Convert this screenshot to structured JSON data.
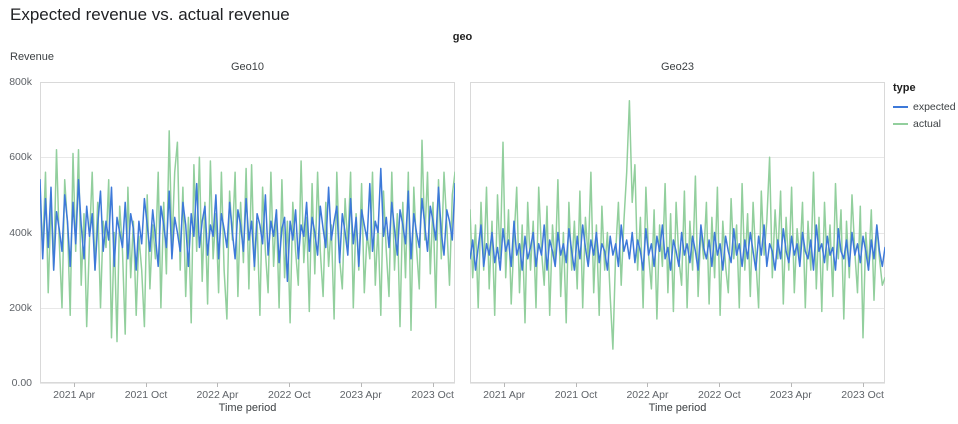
{
  "page": {
    "title": "Expected revenue vs. actual revenue"
  },
  "legend": {
    "title": "type",
    "entries": [
      {
        "label": "expected"
      },
      {
        "label": "actual"
      }
    ]
  },
  "chart_data": {
    "type": "line",
    "title": "Expected revenue vs. actual revenue",
    "facet_field": "geo",
    "legend_position": "right",
    "grid": "horizontal",
    "series_colors": {
      "expected": "#3d79d9",
      "actual": "#92cf9d"
    },
    "value_scale": 1000,
    "x": {
      "title": "Time period",
      "start_date": "2021-01-04",
      "step_days": 7,
      "n_points": 152,
      "ticks": [
        {
          "date": "2021-04-01",
          "label": "2021 Apr"
        },
        {
          "date": "2021-10-01",
          "label": "2021 Oct"
        },
        {
          "date": "2022-04-01",
          "label": "2022 Apr"
        },
        {
          "date": "2022-10-01",
          "label": "2022 Oct"
        },
        {
          "date": "2023-04-01",
          "label": "2023 Apr"
        },
        {
          "date": "2023-10-01",
          "label": "2023 Oct"
        }
      ]
    },
    "y": {
      "title": "Revenue",
      "unit": "thousands",
      "lim": [
        0,
        800
      ],
      "ticks": [
        {
          "value": 0,
          "label": "0.00"
        },
        {
          "value": 200,
          "label": "200k"
        },
        {
          "value": 400,
          "label": "400k"
        },
        {
          "value": 600,
          "label": "600k"
        },
        {
          "value": 800,
          "label": "800k"
        }
      ]
    },
    "facets": [
      {
        "title": "Geo10",
        "series": [
          {
            "name": "expected",
            "values": [
              540,
              330,
              490,
              360,
              520,
              300,
              455,
              410,
              350,
              500,
              430,
              310,
              480,
              370,
              540,
              420,
              330,
              470,
              390,
              450,
              300,
              420,
              510,
              350,
              430,
              380,
              520,
              310,
              440,
              400,
              360,
              480,
              330,
              450,
              410,
              300,
              430,
              370,
              490,
              420,
              350,
              460,
              390,
              310,
              470,
              420,
              360,
              510,
              330,
              440,
              400,
              350,
              480,
              420,
              310,
              450,
              390,
              530,
              360,
              430,
              470,
              340,
              420,
              390,
              500,
              330,
              450,
              410,
              360,
              480,
              400,
              330,
              460,
              420,
              350,
              490,
              380,
              430,
              310,
              450,
              420,
              370,
              500,
              340,
              430,
              390,
              460,
              320,
              410,
              440,
              270,
              430,
              380,
              460,
              330,
              420,
              390,
              480,
              350,
              440,
              400,
              340,
              470,
              410,
              360,
              520,
              380,
              430,
              470,
              320,
              450,
              400,
              340,
              490,
              370,
              440,
              310,
              460,
              420,
              380,
              530,
              350,
              430,
              400,
              570,
              390,
              440,
              360,
              480,
              410,
              340,
              460,
              420,
              370,
              510,
              330,
              450,
              400,
              360,
              490,
              420,
              350,
              470,
              430,
              380,
              520,
              400,
              340,
              460,
              430,
              380,
              530
            ]
          },
          {
            "name": "actual",
            "values": [
              500,
              350,
              560,
              240,
              480,
              300,
              620,
              380,
              200,
              540,
              420,
              180,
              610,
              350,
              620,
              260,
              450,
              150,
              380,
              560,
              300,
              480,
              200,
              430,
              360,
              540,
              120,
              400,
              110,
              470,
              350,
              130,
              520,
              280,
              430,
              180,
              390,
              300,
              150,
              500,
              250,
              420,
              330,
              560,
              200,
              480,
              290,
              670,
              360,
              560,
              640,
              300,
              520,
              230,
              440,
              160,
              580,
              350,
              600,
              270,
              480,
              210,
              590,
              330,
              450,
              240,
              560,
              300,
              170,
              510,
              380,
              560,
              230,
              480,
              320,
              570,
              250,
              580,
              300,
              430,
              180,
              520,
              350,
              240,
              560,
              310,
              460,
              200,
              540,
              280,
              430,
              160,
              480,
              350,
              260,
              590,
              320,
              440,
              190,
              530,
              290,
              560,
              350,
              230,
              480,
              310,
              420,
              170,
              560,
              330,
              250,
              490,
              360,
              560,
              200,
              450,
              300,
              530,
              240,
              400,
              330,
              560,
              260,
              420,
              180,
              510,
              350,
              230,
              560,
              300,
              450,
              150,
              480,
              280,
              560,
              140,
              520,
              360,
              250,
              645,
              380,
              560,
              290,
              480,
              200,
              540,
              330,
              560,
              420,
              260,
              500,
              560
            ]
          }
        ]
      },
      {
        "title": "Geo23",
        "series": [
          {
            "name": "expected",
            "values": [
              330,
              380,
              300,
              360,
              420,
              310,
              370,
              340,
              400,
              320,
              360,
              300,
              410,
              350,
              380,
              310,
              430,
              340,
              370,
              300,
              390,
              330,
              360,
              400,
              310,
              370,
              340,
              420,
              300,
              380,
              350,
              310,
              400,
              340,
              370,
              320,
              410,
              350,
              300,
              390,
              330,
              420,
              360,
              310,
              380,
              340,
              400,
              320,
              370,
              350,
              300,
              390,
              340,
              370,
              310,
              420,
              350,
              380,
              330,
              400,
              320,
              380,
              350,
              300,
              410,
              340,
              370,
              310,
              390,
              350,
              420,
              330,
              360,
              300,
              380,
              350,
              310,
              400,
              340,
              370,
              320,
              390,
              350,
              300,
              420,
              360,
              330,
              380,
              310,
              400,
              340,
              370,
              300,
              390,
              350,
              320,
              410,
              340,
              370,
              310,
              380,
              330,
              400,
              350,
              300,
              390,
              340,
              420,
              310,
              370,
              350,
              300,
              380,
              330,
              410,
              350,
              320,
              390,
              340,
              370,
              310,
              400,
              350,
              330,
              380,
              300,
              420,
              350,
              370,
              320,
              390,
              340,
              360,
              300,
              410,
              350,
              330,
              380,
              310,
              400,
              340,
              370,
              320,
              390,
              350,
              300,
              380,
              330,
              420,
              350,
              310,
              360
            ]
          },
          {
            "name": "actual",
            "values": [
              460,
              280,
              420,
              200,
              480,
              300,
              520,
              250,
              430,
              180,
              500,
              330,
              640,
              280,
              460,
              210,
              380,
              520,
              240,
              420,
              160,
              480,
              300,
              430,
              200,
              520,
              350,
              260,
              470,
              180,
              420,
              310,
              540,
              230,
              400,
              160,
              480,
              300,
              430,
              250,
              510,
              200,
              440,
              330,
              560,
              240,
              420,
              180,
              470,
              300,
              400,
              230,
              90,
              350,
              480,
              260,
              430,
              560,
              750,
              480,
              580,
              300,
              440,
              200,
              520,
              340,
              250,
              460,
              170,
              420,
              310,
              530,
              240,
              450,
              190,
              480,
              330,
              260,
              510,
              200,
              430,
              300,
              550,
              230,
              410,
              330,
              480,
              210,
              440,
              280,
              520,
              180,
              430,
              310,
              240,
              490,
              330,
              420,
              200,
              530,
              300,
              450,
              230,
              480,
              330,
              200,
              510,
              340,
              430,
              600,
              280,
              460,
              330,
              510,
              210,
              440,
              300,
              520,
              240,
              410,
              330,
              480,
              200,
              430,
              300,
              560,
              250,
              440,
              190,
              480,
              300,
              420,
              230,
              530,
              330,
              460,
              170,
              430,
              280,
              500,
              350,
              240,
              470,
              120,
              400,
              300,
              460,
              220,
              420,
              330,
              260,
              280
            ]
          }
        ]
      }
    ]
  }
}
